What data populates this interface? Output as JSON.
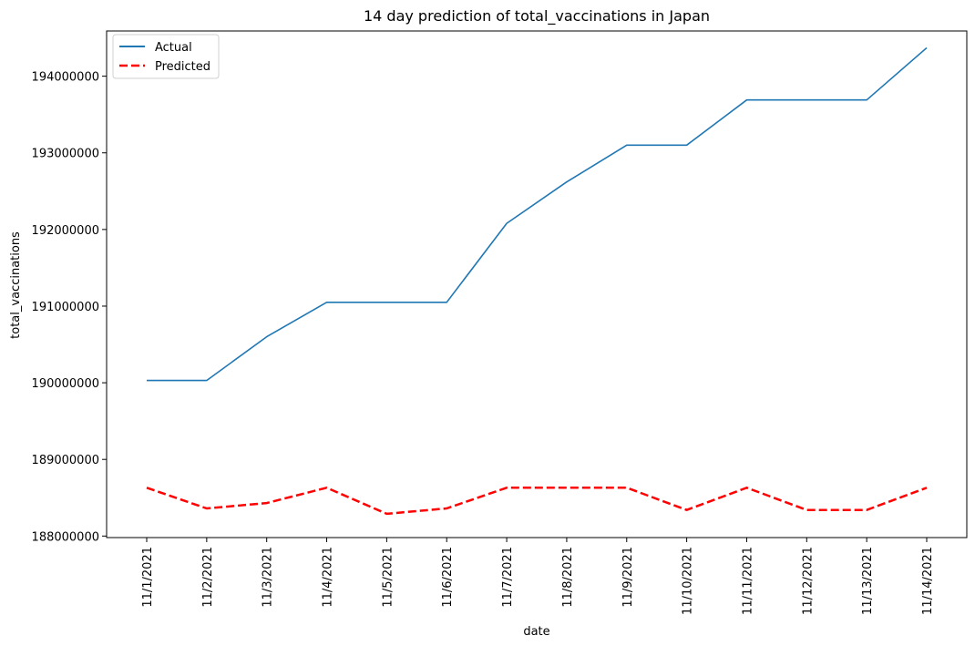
{
  "chart_data": {
    "type": "line",
    "title": "14 day prediction of total_vaccinations in Japan",
    "xlabel": "date",
    "ylabel": "total_vaccinations",
    "x": [
      "11/1/2021",
      "11/2/2021",
      "11/3/2021",
      "11/4/2021",
      "11/5/2021",
      "11/6/2021",
      "11/7/2021",
      "11/8/2021",
      "11/9/2021",
      "11/10/2021",
      "11/11/2021",
      "11/12/2021",
      "11/13/2021",
      "11/14/2021"
    ],
    "yticks": [
      "188000000",
      "189000000",
      "190000000",
      "191000000",
      "192000000",
      "193000000",
      "194000000"
    ],
    "ylim": [
      187980000,
      194590000
    ],
    "grid": false,
    "legend_position": "top-left",
    "series": [
      {
        "name": "Actual",
        "color": "#1f77b4",
        "style": "solid",
        "values": [
          190030000,
          190030000,
          190600000,
          191050000,
          191050000,
          191050000,
          192080000,
          192620000,
          193100000,
          193100000,
          193690000,
          193690000,
          193690000,
          194370000
        ]
      },
      {
        "name": "Predicted",
        "color": "#ff0000",
        "style": "dashed",
        "values": [
          188630000,
          188360000,
          188430000,
          188630000,
          188290000,
          188360000,
          188630000,
          188630000,
          188630000,
          188340000,
          188630000,
          188340000,
          188340000,
          188630000
        ]
      }
    ]
  }
}
